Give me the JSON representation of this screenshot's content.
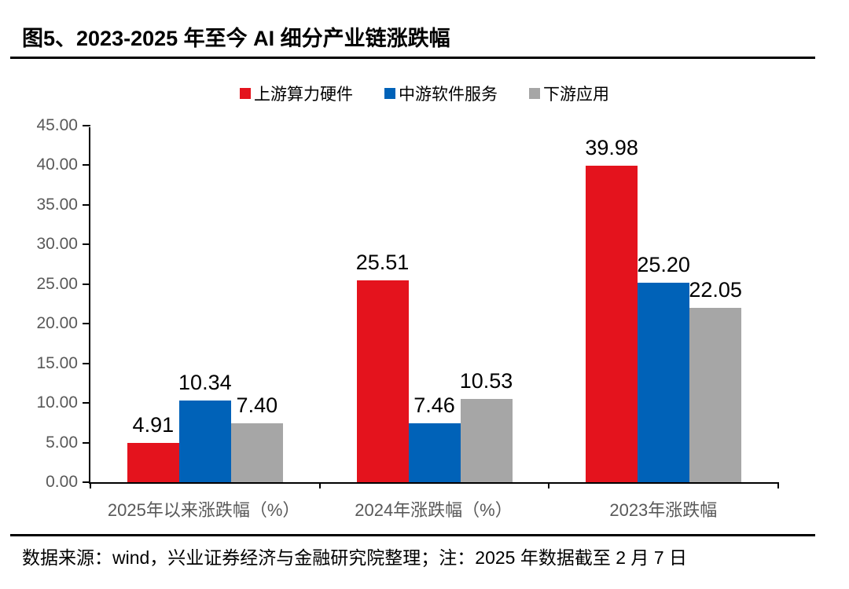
{
  "title": "图5、2023-2025 年至今 AI 细分产业链涨跌幅",
  "footer": {
    "note": "数据来源：wind，兴业证券经济与金融研究院整理；注：2025 年数据截至 2 月 7 日"
  },
  "colors": {
    "upstream_red": "#E4131D",
    "midstream_blue": "#0062B8",
    "downstream_gray": "#A6A6A6",
    "axis": "#000000",
    "axis_labels": "#595959"
  },
  "chart_data": {
    "type": "bar",
    "title": "图5、2023-2025 年至今 AI 细分产业链涨跌幅",
    "categories": [
      "2025年以来涨跌幅（%）",
      "2024年涨跌幅（%）",
      "2023年涨跌幅"
    ],
    "series": [
      {
        "name": "上游算力硬件",
        "color": "#E4131D",
        "values": [
          4.91,
          25.51,
          39.98
        ]
      },
      {
        "name": "中游软件服务",
        "color": "#0062B8",
        "values": [
          10.34,
          7.46,
          25.2
        ]
      },
      {
        "name": "下游应用",
        "color": "#A6A6A6",
        "values": [
          7.4,
          10.53,
          22.05
        ]
      }
    ],
    "xlabel": "",
    "ylabel": "",
    "ylim": [
      0,
      45
    ],
    "ytick_step": 5,
    "ytick_format": "2dp",
    "grid": false,
    "legend_position": "top",
    "value_labels": true
  }
}
